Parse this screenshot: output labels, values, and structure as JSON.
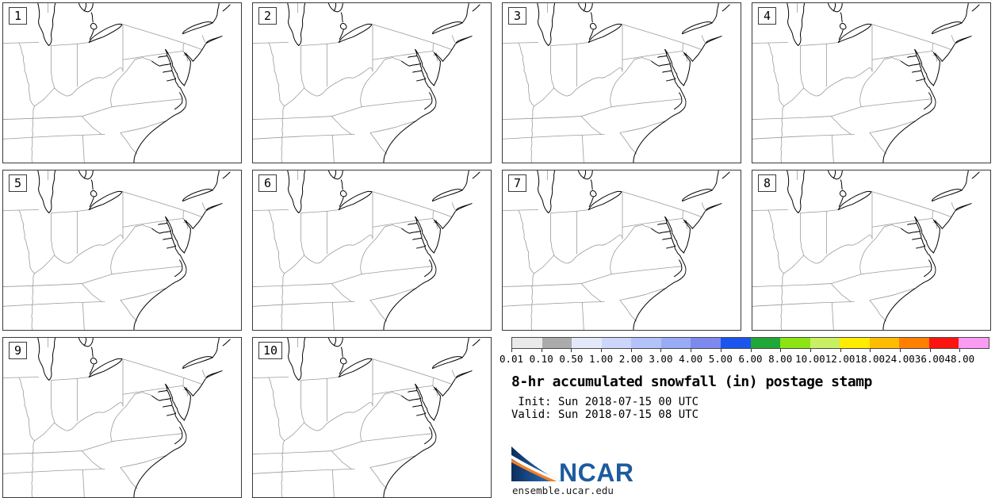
{
  "product": {
    "title": "8-hr accumulated snowfall (in) postage stamp",
    "init_line": " Init: Sun 2018-07-15 00 UTC",
    "valid_line": "Valid: Sun 2018-07-15 08 UTC"
  },
  "panels": [
    {
      "member_label": "1"
    },
    {
      "member_label": "2"
    },
    {
      "member_label": "3"
    },
    {
      "member_label": "4"
    },
    {
      "member_label": "5"
    },
    {
      "member_label": "6"
    },
    {
      "member_label": "7"
    },
    {
      "member_label": "8"
    },
    {
      "member_label": "9"
    },
    {
      "member_label": "10"
    }
  ],
  "colorbar": {
    "unit": "in",
    "tick_labels": [
      "0.01",
      "0.10",
      "0.50",
      "1.00",
      "2.00",
      "3.00",
      "4.00",
      "5.00",
      "6.00",
      "8.00",
      "10.00",
      "12.00",
      "18.00",
      "24.00",
      "36.00",
      "48.00"
    ],
    "segment_colors": [
      "#eaeaea",
      "#ababab",
      "#e3e8fb",
      "#ccd6fa",
      "#b3c2f8",
      "#98abf5",
      "#7d89ef",
      "#1b55ee",
      "#1fa737",
      "#8ce412",
      "#c9ef63",
      "#ffec00",
      "#ffbc00",
      "#ff7f00",
      "#fc1410",
      "#f99af3"
    ]
  },
  "branding": {
    "logo_name": "NCAR",
    "site_url": "ensemble.ucar.edu",
    "logo_blue": "#1d5b9e",
    "logo_navy": "#0d2f63",
    "logo_orange": "#f58025"
  }
}
